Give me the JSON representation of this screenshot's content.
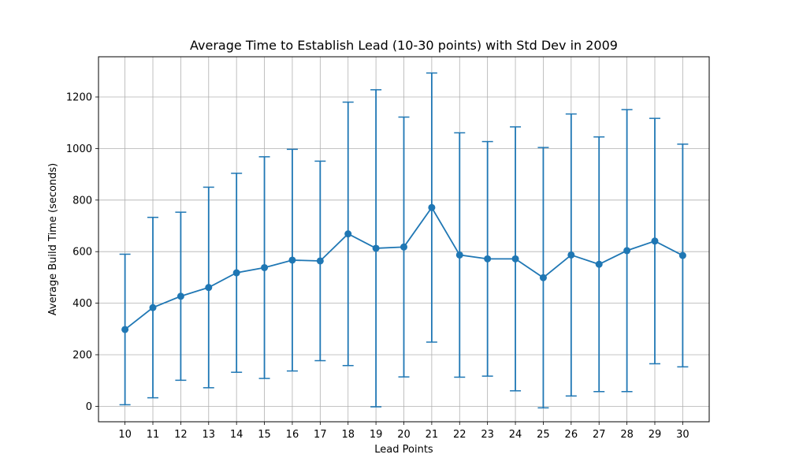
{
  "chart_data": {
    "type": "line",
    "title": "Average Time to Establish Lead (10-30 points) with Std Dev in 2009",
    "xlabel": "Lead Points",
    "ylabel": "Average Build Time (seconds)",
    "x": [
      10,
      11,
      12,
      13,
      14,
      15,
      16,
      17,
      18,
      19,
      20,
      21,
      22,
      23,
      24,
      25,
      26,
      27,
      28,
      29,
      30
    ],
    "y": [
      298,
      383,
      427,
      461,
      518,
      538,
      567,
      564,
      669,
      613,
      618,
      771,
      587,
      572,
      572,
      499,
      587,
      551,
      604,
      641,
      585
    ],
    "yerr": [
      292,
      350,
      326,
      389,
      386,
      430,
      430,
      387,
      511,
      615,
      504,
      522,
      474,
      455,
      512,
      505,
      547,
      494,
      547,
      476,
      432
    ],
    "xlim": [
      9.05,
      30.95
    ],
    "ylim": [
      -60,
      1356
    ],
    "yticks": [
      0,
      200,
      400,
      600,
      800,
      1000,
      1200
    ],
    "grid": true,
    "error_bars": true,
    "color": "#1f77b4"
  }
}
